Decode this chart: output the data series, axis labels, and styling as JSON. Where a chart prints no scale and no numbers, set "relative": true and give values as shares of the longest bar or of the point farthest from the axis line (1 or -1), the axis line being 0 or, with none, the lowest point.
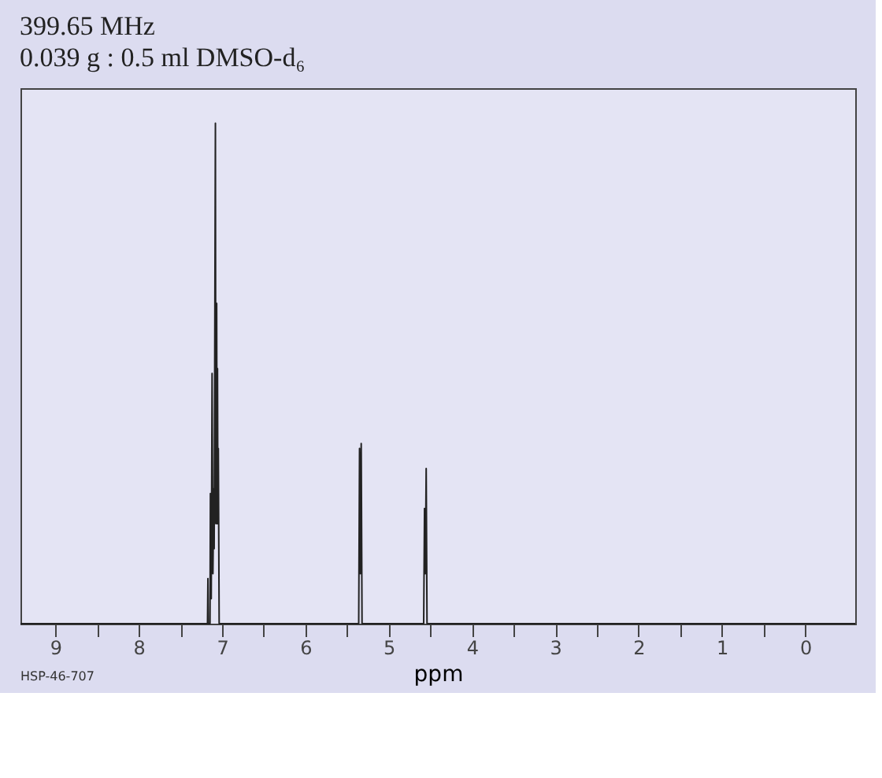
{
  "chart_data": {
    "type": "line",
    "title": "399.65 MHz",
    "subtitle": "0.039 g : 0.5 ml DMSO-d₆",
    "xlabel": "ppm",
    "annotations": [
      "HSP-46-707"
    ],
    "x": [
      9.42,
      7.2,
      7.175,
      7.17,
      7.165,
      7.145,
      7.14,
      7.13,
      7.12,
      7.11,
      7.1,
      7.095,
      7.08,
      7.075,
      7.065,
      7.06,
      7.055,
      7.05,
      7.045,
      7.035,
      5.36,
      5.35,
      5.34,
      5.33,
      5.32,
      4.58,
      4.57,
      4.56,
      4.55,
      4.54,
      -0.6
    ],
    "series": [
      {
        "color": "#222222",
        "values": [
          0,
          0,
          0,
          0.09,
          0,
          0,
          0.26,
          0.05,
          0.5,
          0.1,
          0.27,
          0.15,
          1,
          0.2,
          0.64,
          0.2,
          0.51,
          0.2,
          0.35,
          0,
          0,
          0.35,
          0.1,
          0.36,
          0,
          0,
          0.23,
          0.1,
          0.31,
          0,
          0
        ]
      }
    ],
    "relative": true,
    "xlim": [
      9.42,
      -0.6
    ],
    "xticks": [
      9,
      {
        "value": 8.5,
        "label": null
      },
      8,
      {
        "value": 7.5,
        "label": null
      },
      7,
      {
        "value": 6.5,
        "label": null
      },
      6,
      {
        "value": 5.5,
        "label": null
      },
      5,
      {
        "value": 4.5,
        "label": null
      },
      4,
      {
        "value": 3.5,
        "label": null
      },
      3,
      {
        "value": 2.5,
        "label": null
      },
      2,
      {
        "value": 1.5,
        "label": null
      },
      1,
      {
        "value": 0.5,
        "label": null
      },
      0
    ],
    "tick_labels": "x",
    "grid": false,
    "marker": "none",
    "line_style": "solid"
  }
}
